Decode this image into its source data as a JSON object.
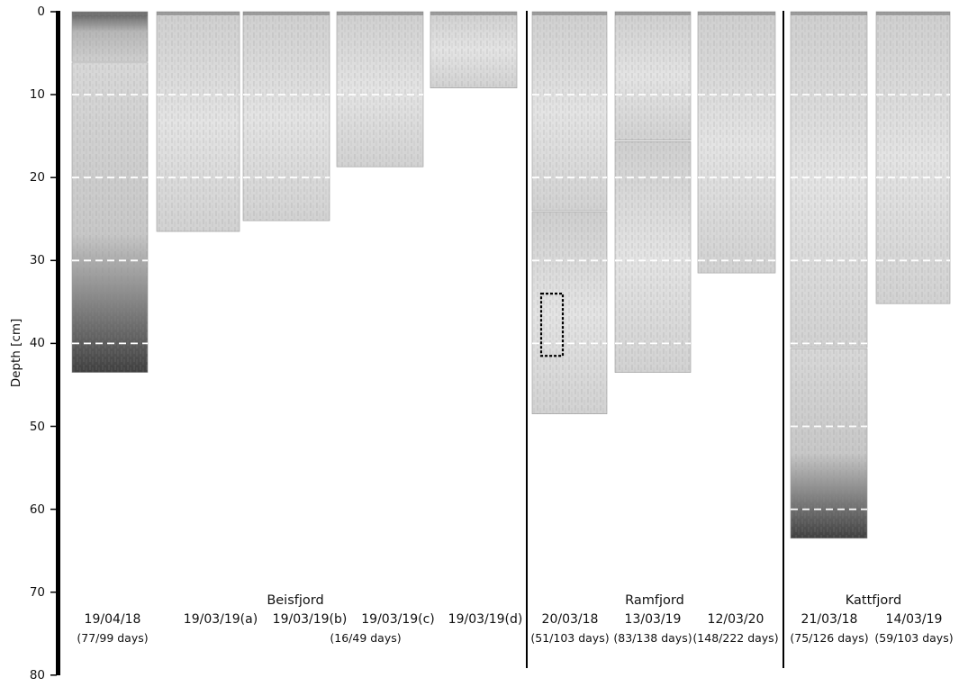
{
  "axis": {
    "label": "Depth [cm]",
    "ticks": [
      "0",
      "10",
      "20",
      "30",
      "40",
      "50",
      "60",
      "70",
      "80"
    ],
    "min": 0,
    "max": 80
  },
  "fjords": [
    {
      "name": "Beisfjord",
      "note": "(16/49 days)",
      "cores": [
        {
          "date": "19/04/18",
          "days": "(77/99 days)",
          "depth_cm": 43.5,
          "section_breaks_cm": [
            6
          ]
        },
        {
          "date": "19/03/19(a)",
          "days": "",
          "depth_cm": 26.5,
          "section_breaks_cm": []
        },
        {
          "date": "19/03/19(b)",
          "days": "",
          "depth_cm": 25.2,
          "section_breaks_cm": []
        },
        {
          "date": "19/03/19(c)",
          "days": "",
          "depth_cm": 18.7,
          "section_breaks_cm": []
        },
        {
          "date": "19/03/19(d)",
          "days": "",
          "depth_cm": 9.2,
          "section_breaks_cm": []
        }
      ]
    },
    {
      "name": "Ramfjord",
      "note": "",
      "cores": [
        {
          "date": "20/03/18",
          "days": "(51/103 days)",
          "depth_cm": 48.5,
          "section_breaks_cm": [
            24
          ]
        },
        {
          "date": "13/03/19",
          "days": "(83/138 days)",
          "depth_cm": 43.5,
          "section_breaks_cm": [
            15.5
          ]
        },
        {
          "date": "12/03/20",
          "days": "(148/222 days)",
          "depth_cm": 31.5,
          "section_breaks_cm": []
        }
      ]
    },
    {
      "name": "Kattfjord",
      "note": "",
      "cores": [
        {
          "date": "21/03/18",
          "days": "(75/126 days)",
          "depth_cm": 63.5,
          "section_breaks_cm": [
            40.5
          ]
        },
        {
          "date": "14/03/19",
          "days": "(59/103 days)",
          "depth_cm": 35.2,
          "section_breaks_cm": []
        }
      ]
    }
  ],
  "reference_lines_cm": [
    10,
    20,
    30,
    40,
    50,
    60
  ],
  "highlight": {
    "core": "20/03/18",
    "from_cm": 34,
    "to_cm": 41.5
  },
  "colors": {
    "core_light": "#d6d6d6",
    "core_mid": "#a9a9a9",
    "core_dark": "#4a4a4a",
    "dashed_line": "#ffffff",
    "axis": "#000000"
  }
}
